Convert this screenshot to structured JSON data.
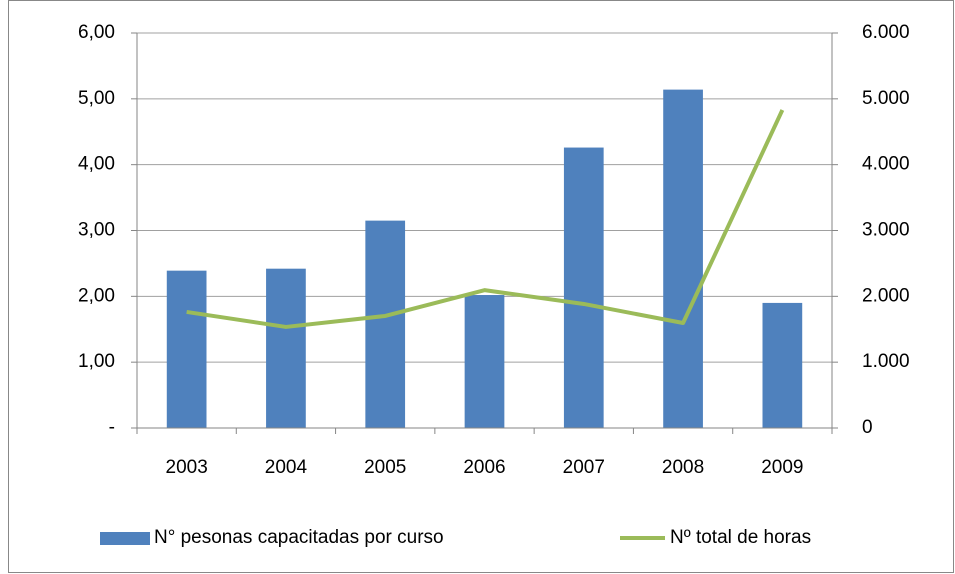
{
  "chart_data": {
    "type": "bar-line",
    "categories": [
      "2003",
      "2004",
      "2005",
      "2006",
      "2007",
      "2008",
      "2009"
    ],
    "series": [
      {
        "name": "N° pesonas capacitadas por curso",
        "type": "bar",
        "color": "#4f81bd",
        "values": [
          2.39,
          2.42,
          3.15,
          2.02,
          4.26,
          5.14,
          1.9
        ]
      },
      {
        "name": "Nº total de horas",
        "type": "line",
        "axis": "y2",
        "color": "#9bbb59",
        "values": [
          1763,
          1535,
          1702,
          2094,
          1884,
          1595,
          4830
        ]
      }
    ],
    "ylim": [
      0,
      6
    ],
    "yticks": [
      {
        "value": 0,
        "label": "-"
      },
      {
        "value": 1,
        "label": "1,00"
      },
      {
        "value": 2,
        "label": "2,00"
      },
      {
        "value": 3,
        "label": "3,00"
      },
      {
        "value": 4,
        "label": "4,00"
      },
      {
        "value": 5,
        "label": "5,00"
      },
      {
        "value": 6,
        "label": "6,00"
      }
    ],
    "y2lim": [
      0,
      6000
    ],
    "y2ticks": [
      0,
      {
        "value": 1000,
        "label": "1.000"
      },
      {
        "value": 2000,
        "label": "2.000"
      },
      {
        "value": 3000,
        "label": "3.000"
      },
      {
        "value": 4000,
        "label": "4.000"
      },
      {
        "value": 5000,
        "label": "5.000"
      },
      {
        "value": 6000,
        "label": "6.000"
      }
    ],
    "grid": true,
    "legend": "bottom"
  }
}
